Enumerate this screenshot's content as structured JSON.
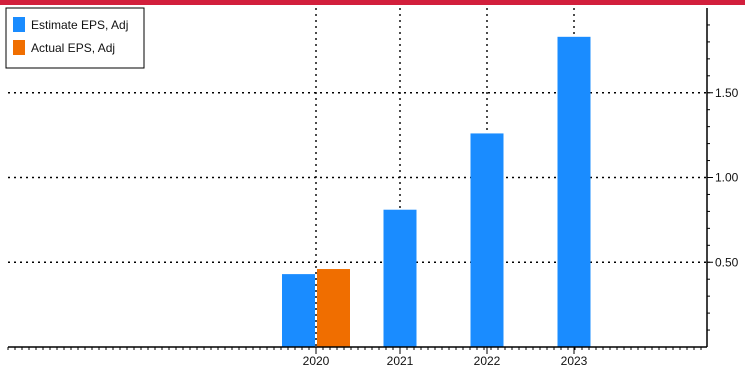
{
  "colors": {
    "top_bar": "#d21f3c",
    "estimate": "#1a8cff",
    "actual": "#f06e00",
    "axis": "#000000",
    "grid": "#000000"
  },
  "chart_data": {
    "type": "bar",
    "categories": [
      "2020",
      "2021",
      "2022",
      "2023"
    ],
    "series": [
      {
        "name": "Estimate EPS, Adj",
        "values": [
          0.43,
          0.81,
          1.26,
          1.83
        ]
      },
      {
        "name": "Actual EPS, Adj",
        "values": [
          0.46,
          null,
          null,
          null
        ]
      }
    ],
    "title": "",
    "xlabel": "",
    "ylabel": "",
    "ylim": [
      0,
      2.0
    ],
    "y_ticks": [
      0.5,
      1.0,
      1.5
    ],
    "y_tick_labels": [
      "0.50",
      "1.00",
      "1.50"
    ],
    "y_axis_side": "right",
    "grid": true,
    "legend_position": "top-left"
  }
}
